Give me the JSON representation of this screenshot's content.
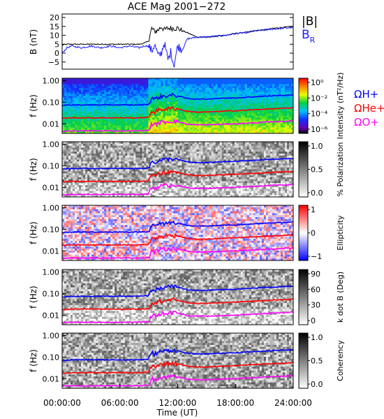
{
  "chart_data": {
    "type": "spectrogram-stack",
    "title": "ACE Mag 2001−272",
    "xlabel": "Time (UT)",
    "xlim": [
      "00:00:00",
      "24:00:00"
    ],
    "x_ticks": [
      "00:00:00",
      "06:00:00",
      "12:00:00",
      "18:00:00",
      "24:00:00"
    ],
    "colors": {
      "B": "#000000",
      "BR": "#1a1aff",
      "H": "#0000ff",
      "He": "#ff0000",
      "O": "#ff00ff"
    },
    "line_panel": {
      "ylabel": "B (nT)",
      "ylim": [
        -9,
        22
      ],
      "y_ticks": [
        "20",
        "15",
        "10",
        "5",
        "0",
        "−5"
      ],
      "legend": [
        "|B|",
        "B",
        "R"
      ],
      "series": [
        {
          "key": "B",
          "t": [
            0,
            0.5,
            1,
            2,
            3,
            4,
            5,
            6,
            7,
            8,
            8.5,
            9,
            9.3,
            9.6,
            10,
            10.3,
            10.6,
            11,
            11.5,
            12,
            12.5,
            13,
            14,
            15,
            16,
            17,
            18,
            19,
            20,
            21,
            22,
            23,
            24
          ],
          "v": [
            4.5,
            5,
            5,
            5,
            5,
            5,
            5,
            5,
            5,
            5,
            5.5,
            7,
            14,
            12,
            13,
            15,
            13,
            14,
            14,
            14,
            12.5,
            11.5,
            9,
            9,
            9.5,
            10,
            11,
            11.5,
            12.5,
            13,
            14,
            14.5,
            15
          ]
        },
        {
          "key": "BR",
          "t": [
            0,
            0.5,
            1,
            2,
            3,
            4,
            5,
            6,
            7,
            8,
            8.5,
            9,
            9.3,
            9.6,
            10,
            10.3,
            10.6,
            11,
            11.3,
            11.6,
            12,
            12.5,
            13,
            14,
            15,
            16,
            17,
            18,
            19,
            20,
            21,
            22,
            23,
            24
          ],
          "v": [
            0,
            3,
            4,
            3,
            4,
            3,
            4,
            3,
            4,
            3,
            4,
            4,
            1,
            5,
            -2,
            0,
            6,
            -4,
            1,
            -7,
            4,
            2,
            8,
            9,
            9,
            9.5,
            10,
            11,
            11.5,
            12.5,
            13,
            13.5,
            14,
            14.5
          ]
        }
      ]
    },
    "spectrogram_panels": [
      {
        "key": "intensity",
        "ylabel": "f (Hz)",
        "colorbar_label": "Intensity (nT²/Hz)",
        "colorbar_ticks": [
          "10⁰",
          "10⁻²",
          "10⁻⁴",
          "10⁻⁶"
        ],
        "colormap": "rainbow",
        "legend": [
          "ΩH+",
          "ΩHe+",
          "ΩO+"
        ]
      },
      {
        "key": "polarization",
        "ylabel": "f (Hz)",
        "colorbar_label": "% Polarization",
        "colorbar_ticks": [
          "1.0",
          "0.5",
          "0.0"
        ],
        "colormap": "gray"
      },
      {
        "key": "ellipticity",
        "ylabel": "f (Hz)",
        "colorbar_label": "Ellipticity",
        "colorbar_ticks": [
          "1",
          "0",
          "−1"
        ],
        "colormap": "bwr"
      },
      {
        "key": "kdotb",
        "ylabel": "f (Hz)",
        "colorbar_label": "k dot B (Deg)",
        "colorbar_ticks": [
          "90",
          "60",
          "30",
          "0"
        ],
        "colormap": "gray"
      },
      {
        "key": "coherency",
        "ylabel": "f (Hz)",
        "colorbar_label": "Coherency",
        "colorbar_ticks": [
          "1.0",
          "0.5",
          "0.0"
        ],
        "colormap": "gray"
      }
    ],
    "freq_axis": {
      "scale": "log",
      "ylim": [
        0.0036,
        1.3
      ],
      "y_ticks": [
        "1.00",
        "0.10",
        "0.01"
      ]
    },
    "gyrofrequency_lines": [
      {
        "key": "H",
        "name": "ΩH+",
        "t": [
          0,
          1,
          2,
          3,
          4,
          5,
          6,
          7,
          8,
          9,
          9.3,
          9.6,
          10,
          10.5,
          11,
          11.5,
          12,
          12.5,
          13,
          14,
          15,
          16,
          17,
          18,
          19,
          20,
          21,
          22,
          23,
          24
        ],
        "v": [
          0.07,
          0.075,
          0.075,
          0.075,
          0.075,
          0.075,
          0.075,
          0.075,
          0.075,
          0.08,
          0.16,
          0.14,
          0.17,
          0.19,
          0.2,
          0.21,
          0.2,
          0.17,
          0.15,
          0.14,
          0.14,
          0.15,
          0.155,
          0.16,
          0.17,
          0.18,
          0.19,
          0.2,
          0.21,
          0.22
        ]
      },
      {
        "key": "He",
        "name": "ΩHe+",
        "t": [
          0,
          1,
          2,
          3,
          4,
          5,
          6,
          7,
          8,
          9,
          9.3,
          9.6,
          10,
          10.5,
          11,
          11.5,
          12,
          12.5,
          13,
          14,
          15,
          16,
          17,
          18,
          19,
          20,
          21,
          22,
          23,
          24
        ],
        "v": [
          0.018,
          0.019,
          0.019,
          0.019,
          0.019,
          0.019,
          0.019,
          0.019,
          0.019,
          0.02,
          0.04,
          0.035,
          0.043,
          0.048,
          0.05,
          0.052,
          0.05,
          0.043,
          0.038,
          0.035,
          0.035,
          0.037,
          0.039,
          0.04,
          0.043,
          0.045,
          0.048,
          0.05,
          0.052,
          0.055
        ]
      },
      {
        "key": "O",
        "name": "ΩO+",
        "t": [
          0,
          1,
          2,
          3,
          4,
          5,
          6,
          7,
          8,
          9,
          9.3,
          9.6,
          10,
          10.5,
          11,
          11.5,
          12,
          12.5,
          13,
          14,
          15,
          16,
          17,
          18,
          19,
          20,
          21,
          22,
          23,
          24
        ],
        "v": [
          0.0045,
          0.0047,
          0.0047,
          0.0047,
          0.0047,
          0.0047,
          0.0047,
          0.0047,
          0.0047,
          0.005,
          0.01,
          0.009,
          0.011,
          0.012,
          0.0125,
          0.013,
          0.0125,
          0.011,
          0.0095,
          0.009,
          0.009,
          0.0093,
          0.0097,
          0.01,
          0.0107,
          0.011,
          0.012,
          0.0125,
          0.013,
          0.014
        ]
      }
    ]
  }
}
